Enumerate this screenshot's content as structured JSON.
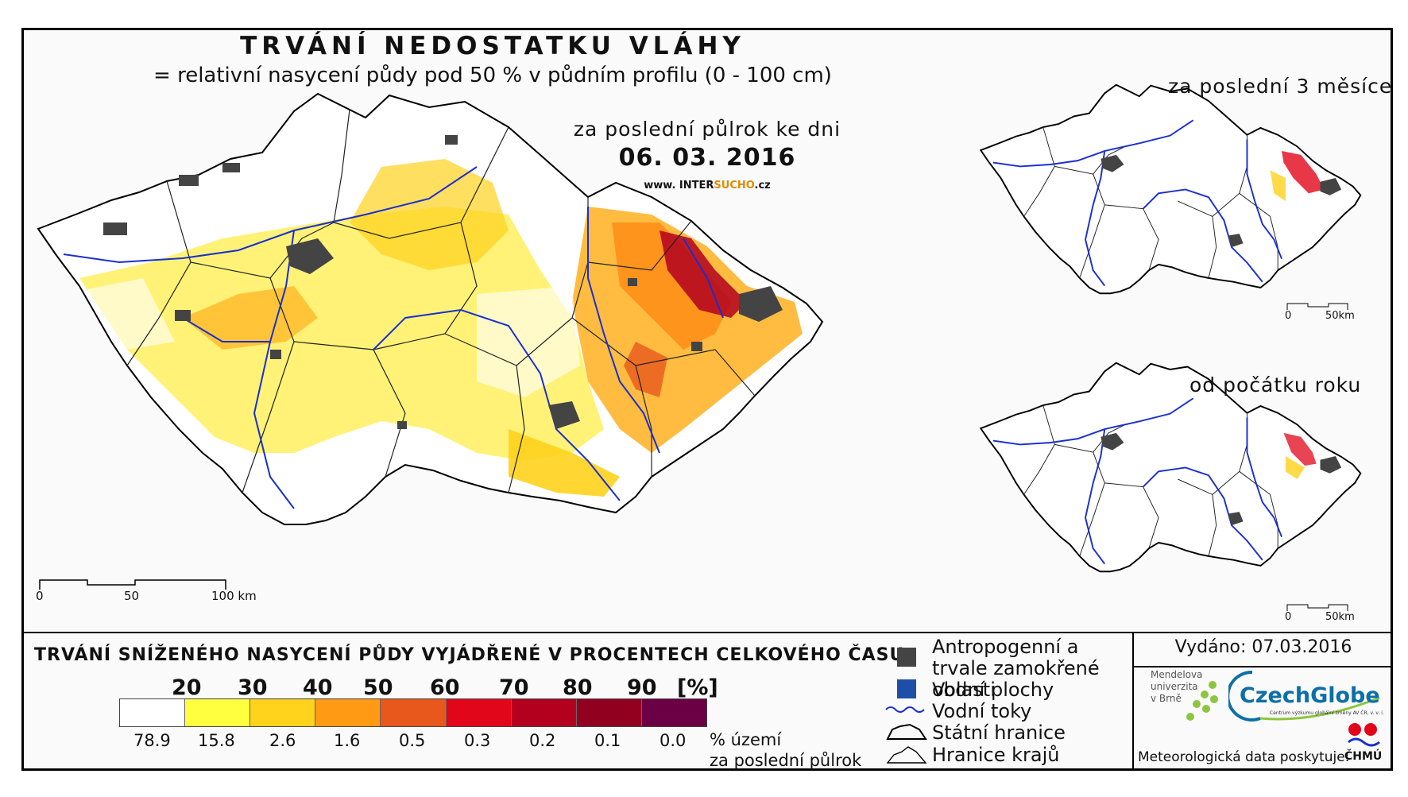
{
  "header": {
    "title": "TRVÁNÍ NEDOSTATKU VLÁHY",
    "subtitle": "= relativní nasycení půdy pod 50 % v půdním profilu (0 - 100 cm)",
    "period_label": "za poslední půlrok ke dni",
    "date": "06. 03. 2016",
    "website_prefix": "www. INTER",
    "website_accent": "SUCHO",
    "website_suffix": ".cz"
  },
  "insets": {
    "top_label": "za poslední 3 měsíce",
    "bottom_label": "od počátku roku"
  },
  "scalebar_main": {
    "zero": "0",
    "mid": "50",
    "end": "100 km"
  },
  "scalebar_inset": {
    "zero": "0",
    "end": "50km"
  },
  "legend": {
    "title": "TRVÁNÍ SNÍŽENÉHO NASYCENÍ PŮDY VYJÁDŘENÉ V PROCENTECH CELKOVÉHO ČASU",
    "ticks": [
      "20",
      "30",
      "40",
      "50",
      "60",
      "70",
      "80",
      "90"
    ],
    "unit": "[%]",
    "colors": [
      "#ffffff",
      "#ffff40",
      "#ffd21c",
      "#ff9a14",
      "#e8581c",
      "#e2061a",
      "#b3001e",
      "#92001f",
      "#6b0044"
    ],
    "percentages": [
      "78.9",
      "15.8",
      "2.6",
      "1.6",
      "0.5",
      "0.3",
      "0.2",
      "0.1",
      "0.0"
    ],
    "pct_caption_line1": "% území",
    "pct_caption_line2": "za poslední půlrok"
  },
  "map_key": {
    "urban": "Antropogenní a trvale zamokřené oblasti",
    "water": "Vodní plochy",
    "rivers": "Vodní toky",
    "border": "Státní hranice",
    "regions": "Hranice krajů",
    "urban_color": "#444444",
    "water_color": "#1f4ea8",
    "river_color": "#1a2fd0"
  },
  "footer": {
    "issued": "Vydáno: 07.03.2016",
    "mendel": [
      "Mendelova",
      "univerzita",
      "v Brně"
    ],
    "czechglobe": "CzechGlobe",
    "czechglobe_sub": "Centrum výzkumu globální změny AV ČR, v. v. i.",
    "meteo": "Meteorologická data poskytuje:",
    "chmu": "ČHMÚ"
  }
}
